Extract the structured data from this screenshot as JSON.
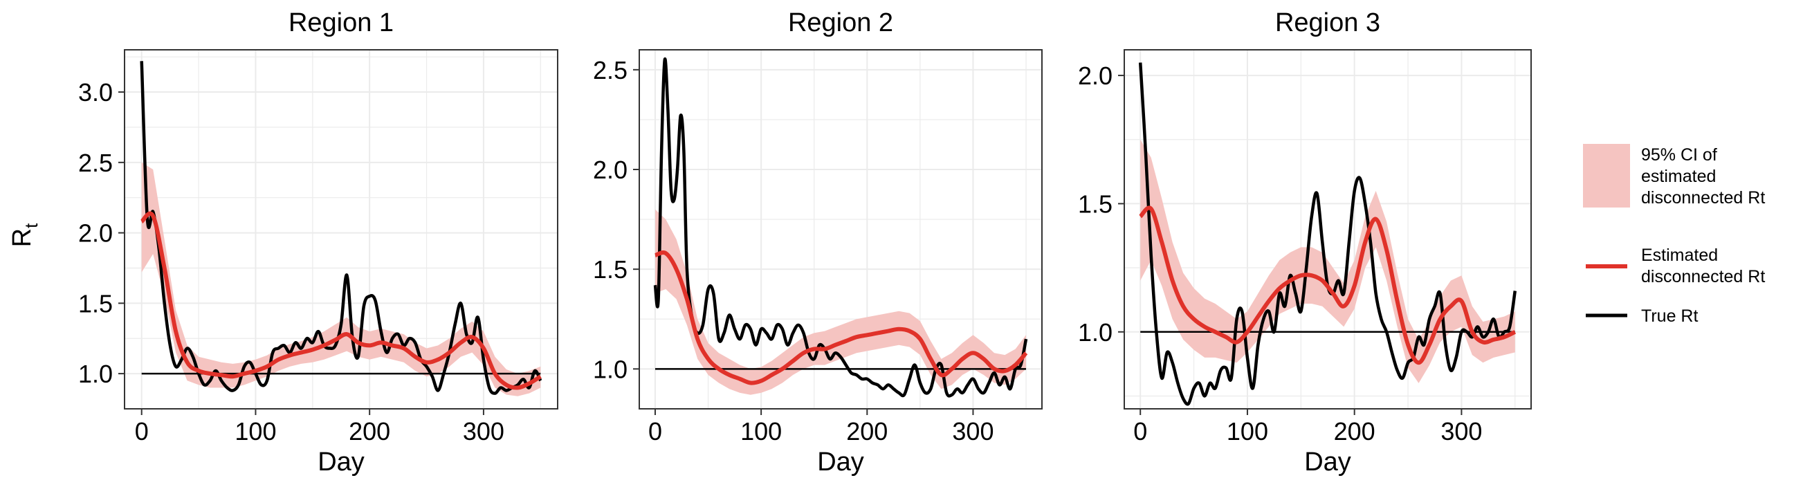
{
  "colors": {
    "ci": "#f5c4c1",
    "estimate": "#e0322a",
    "true": "#000000",
    "grid": "#ebebeb",
    "panel_border": "#333333"
  },
  "legend": {
    "items": [
      {
        "lines": [
          "95% CI of",
          "estimated",
          "disconnected Rt"
        ]
      },
      {
        "lines": [
          "Estimated",
          "disconnected Rt"
        ]
      },
      {
        "lines": [
          "True Rt"
        ]
      }
    ]
  },
  "chart_data": [
    {
      "type": "line",
      "title": "Region 1",
      "xlabel": "Day",
      "ylabel": "R",
      "ylabel_sub": "t",
      "xlim": [
        -15,
        365
      ],
      "ylim": [
        0.75,
        3.3
      ],
      "xticks": [
        0,
        100,
        200,
        300
      ],
      "xtick_labels": [
        "0",
        "100",
        "200",
        "300"
      ],
      "yticks": [
        1.0,
        1.5,
        2.0,
        2.5,
        3.0
      ],
      "ytick_labels": [
        "1.0",
        "1.5",
        "2.0",
        "2.5",
        "3.0"
      ],
      "reference_line": 1.0,
      "grid": true,
      "series": [
        {
          "role": "estimate",
          "x": [
            0,
            10,
            20,
            30,
            40,
            50,
            60,
            70,
            80,
            90,
            100,
            110,
            120,
            130,
            140,
            150,
            160,
            170,
            180,
            190,
            200,
            210,
            220,
            230,
            240,
            250,
            260,
            270,
            280,
            290,
            300,
            310,
            320,
            330,
            340,
            350
          ],
          "y": [
            2.08,
            2.12,
            1.75,
            1.3,
            1.08,
            1.02,
            1.0,
            0.99,
            0.98,
            1.0,
            1.02,
            1.05,
            1.1,
            1.13,
            1.15,
            1.17,
            1.2,
            1.24,
            1.28,
            1.22,
            1.2,
            1.22,
            1.2,
            1.18,
            1.12,
            1.08,
            1.1,
            1.15,
            1.22,
            1.26,
            1.18,
            1.0,
            0.92,
            0.9,
            0.93,
            0.98
          ],
          "lower": [
            1.72,
            1.85,
            1.55,
            1.15,
            0.95,
            0.92,
            0.9,
            0.9,
            0.9,
            0.92,
            0.95,
            0.98,
            1.02,
            1.05,
            1.07,
            1.08,
            1.1,
            1.13,
            1.16,
            1.12,
            1.1,
            1.12,
            1.1,
            1.08,
            1.02,
            0.98,
            1.0,
            1.05,
            1.12,
            1.15,
            1.06,
            0.9,
            0.85,
            0.84,
            0.86,
            0.9
          ],
          "upper": [
            2.5,
            2.45,
            1.95,
            1.45,
            1.2,
            1.12,
            1.1,
            1.08,
            1.07,
            1.08,
            1.1,
            1.13,
            1.18,
            1.21,
            1.23,
            1.26,
            1.3,
            1.35,
            1.4,
            1.33,
            1.3,
            1.32,
            1.3,
            1.28,
            1.22,
            1.18,
            1.2,
            1.25,
            1.32,
            1.37,
            1.3,
            1.12,
            1.03,
            1.0,
            1.02,
            1.05
          ]
        },
        {
          "role": "true",
          "x": [
            0,
            5,
            10,
            15,
            20,
            25,
            30,
            35,
            40,
            45,
            50,
            55,
            60,
            65,
            70,
            75,
            80,
            85,
            90,
            95,
            100,
            105,
            110,
            115,
            120,
            125,
            130,
            135,
            140,
            145,
            150,
            155,
            160,
            165,
            170,
            175,
            180,
            185,
            190,
            195,
            200,
            205,
            210,
            215,
            220,
            225,
            230,
            235,
            240,
            245,
            250,
            255,
            260,
            265,
            270,
            275,
            280,
            285,
            290,
            295,
            300,
            305,
            310,
            315,
            320,
            325,
            330,
            335,
            340,
            345,
            350
          ],
          "y": [
            3.22,
            2.1,
            2.15,
            1.9,
            1.5,
            1.2,
            1.05,
            1.1,
            1.18,
            1.12,
            1.0,
            0.92,
            0.95,
            1.02,
            0.95,
            0.9,
            0.88,
            0.92,
            1.05,
            1.08,
            1.0,
            0.92,
            0.95,
            1.15,
            1.18,
            1.2,
            1.15,
            1.22,
            1.18,
            1.25,
            1.22,
            1.3,
            1.2,
            1.18,
            1.2,
            1.35,
            1.7,
            1.25,
            1.12,
            1.48,
            1.55,
            1.52,
            1.3,
            1.15,
            1.25,
            1.28,
            1.2,
            1.25,
            1.22,
            1.1,
            1.05,
            0.98,
            0.88,
            1.0,
            1.15,
            1.35,
            1.5,
            1.28,
            1.22,
            1.4,
            1.1,
            0.9,
            0.86,
            0.9,
            0.88,
            0.9,
            0.92,
            0.96,
            0.9,
            1.02,
            0.95
          ]
        }
      ]
    },
    {
      "type": "line",
      "title": "Region 2",
      "xlabel": "Day",
      "ylabel": "",
      "xlim": [
        -15,
        365
      ],
      "ylim": [
        0.8,
        2.6
      ],
      "xticks": [
        0,
        100,
        200,
        300
      ],
      "xtick_labels": [
        "0",
        "100",
        "200",
        "300"
      ],
      "yticks": [
        1.0,
        1.5,
        2.0,
        2.5
      ],
      "ytick_labels": [
        "1.0",
        "1.5",
        "2.0",
        "2.5"
      ],
      "reference_line": 1.0,
      "grid": true,
      "series": [
        {
          "role": "estimate",
          "x": [
            0,
            10,
            20,
            30,
            40,
            50,
            60,
            70,
            80,
            90,
            100,
            110,
            120,
            130,
            140,
            150,
            160,
            170,
            180,
            190,
            200,
            210,
            220,
            230,
            240,
            250,
            260,
            270,
            280,
            290,
            300,
            310,
            320,
            330,
            340,
            350
          ],
          "y": [
            1.57,
            1.58,
            1.5,
            1.35,
            1.15,
            1.05,
            1.0,
            0.97,
            0.95,
            0.93,
            0.94,
            0.97,
            1.0,
            1.04,
            1.08,
            1.1,
            1.1,
            1.12,
            1.14,
            1.16,
            1.17,
            1.18,
            1.19,
            1.2,
            1.19,
            1.15,
            1.05,
            0.97,
            1.0,
            1.05,
            1.08,
            1.05,
            1.0,
            0.99,
            1.02,
            1.08
          ],
          "lower": [
            1.38,
            1.4,
            1.35,
            1.22,
            1.05,
            0.97,
            0.93,
            0.9,
            0.88,
            0.87,
            0.88,
            0.9,
            0.93,
            0.97,
            1.0,
            1.02,
            1.02,
            1.04,
            1.06,
            1.08,
            1.09,
            1.1,
            1.11,
            1.12,
            1.11,
            1.07,
            0.97,
            0.9,
            0.92,
            0.97,
            1.0,
            0.97,
            0.93,
            0.92,
            0.95,
            1.0
          ],
          "upper": [
            1.8,
            1.75,
            1.65,
            1.48,
            1.25,
            1.13,
            1.08,
            1.05,
            1.02,
            1.0,
            1.01,
            1.04,
            1.08,
            1.12,
            1.16,
            1.18,
            1.19,
            1.21,
            1.23,
            1.25,
            1.26,
            1.27,
            1.28,
            1.29,
            1.28,
            1.24,
            1.14,
            1.05,
            1.08,
            1.13,
            1.17,
            1.13,
            1.08,
            1.07,
            1.1,
            1.17
          ]
        },
        {
          "role": "true",
          "x": [
            0,
            3,
            6,
            9,
            12,
            15,
            18,
            21,
            24,
            27,
            30,
            35,
            40,
            45,
            50,
            55,
            60,
            65,
            70,
            75,
            80,
            85,
            90,
            95,
            100,
            105,
            110,
            115,
            120,
            125,
            130,
            135,
            140,
            145,
            150,
            155,
            160,
            165,
            170,
            175,
            180,
            185,
            190,
            195,
            200,
            205,
            210,
            215,
            220,
            225,
            230,
            235,
            240,
            245,
            250,
            255,
            260,
            265,
            270,
            275,
            280,
            285,
            290,
            295,
            300,
            305,
            310,
            315,
            320,
            325,
            330,
            335,
            340,
            345,
            350
          ],
          "y": [
            1.42,
            1.35,
            2.1,
            2.55,
            2.3,
            1.9,
            1.85,
            2.0,
            2.27,
            2.1,
            1.5,
            1.25,
            1.18,
            1.22,
            1.4,
            1.38,
            1.15,
            1.18,
            1.27,
            1.2,
            1.15,
            1.22,
            1.2,
            1.12,
            1.2,
            1.18,
            1.15,
            1.22,
            1.2,
            1.12,
            1.18,
            1.22,
            1.18,
            1.08,
            1.05,
            1.12,
            1.1,
            1.05,
            1.08,
            1.06,
            1.02,
            0.98,
            0.97,
            0.95,
            0.95,
            0.93,
            0.92,
            0.9,
            0.92,
            0.9,
            0.88,
            0.87,
            0.95,
            1.02,
            0.93,
            0.88,
            0.9,
            1.0,
            1.02,
            0.88,
            0.87,
            0.9,
            0.88,
            0.92,
            0.95,
            0.9,
            0.88,
            0.93,
            0.98,
            0.92,
            0.96,
            0.9,
            1.0,
            1.02,
            1.15
          ]
        }
      ]
    },
    {
      "type": "line",
      "title": "Region 3",
      "xlabel": "Day",
      "ylabel": "",
      "xlim": [
        -15,
        365
      ],
      "ylim": [
        0.7,
        2.1
      ],
      "xticks": [
        0,
        100,
        200,
        300
      ],
      "xtick_labels": [
        "0",
        "100",
        "200",
        "300"
      ],
      "yticks": [
        1.0,
        1.5,
        2.0
      ],
      "ytick_labels": [
        "1.0",
        "1.5",
        "2.0"
      ],
      "reference_line": 1.0,
      "grid": true,
      "series": [
        {
          "role": "estimate",
          "x": [
            0,
            10,
            20,
            30,
            40,
            50,
            60,
            70,
            80,
            90,
            100,
            110,
            120,
            130,
            140,
            150,
            160,
            170,
            180,
            190,
            200,
            210,
            220,
            230,
            240,
            250,
            260,
            270,
            280,
            290,
            300,
            310,
            320,
            330,
            340,
            350
          ],
          "y": [
            1.45,
            1.48,
            1.35,
            1.2,
            1.1,
            1.05,
            1.02,
            1.0,
            0.98,
            0.96,
            1.0,
            1.06,
            1.12,
            1.17,
            1.2,
            1.22,
            1.22,
            1.2,
            1.15,
            1.1,
            1.18,
            1.35,
            1.44,
            1.32,
            1.12,
            0.95,
            0.88,
            0.95,
            1.05,
            1.1,
            1.12,
            1.0,
            0.96,
            0.97,
            0.98,
            1.0
          ],
          "lower": [
            1.2,
            1.28,
            1.18,
            1.05,
            0.97,
            0.93,
            0.9,
            0.9,
            0.89,
            0.88,
            0.92,
            0.97,
            1.02,
            1.07,
            1.09,
            1.11,
            1.11,
            1.1,
            1.06,
            1.02,
            1.09,
            1.25,
            1.33,
            1.2,
            1.02,
            0.86,
            0.8,
            0.87,
            0.96,
            1.0,
            1.02,
            0.91,
            0.88,
            0.9,
            0.91,
            0.92
          ],
          "upper": [
            1.75,
            1.68,
            1.52,
            1.35,
            1.23,
            1.17,
            1.13,
            1.11,
            1.08,
            1.05,
            1.08,
            1.15,
            1.22,
            1.28,
            1.31,
            1.33,
            1.33,
            1.31,
            1.25,
            1.19,
            1.28,
            1.45,
            1.55,
            1.43,
            1.23,
            1.05,
            0.97,
            1.04,
            1.14,
            1.2,
            1.22,
            1.1,
            1.04,
            1.05,
            1.06,
            1.08
          ]
        },
        {
          "role": "true",
          "x": [
            0,
            5,
            10,
            15,
            20,
            25,
            30,
            35,
            40,
            45,
            50,
            55,
            60,
            65,
            70,
            75,
            80,
            85,
            90,
            95,
            100,
            105,
            110,
            115,
            120,
            125,
            130,
            135,
            140,
            145,
            150,
            155,
            160,
            165,
            170,
            175,
            180,
            185,
            190,
            195,
            200,
            205,
            210,
            215,
            220,
            225,
            230,
            235,
            240,
            245,
            250,
            255,
            260,
            265,
            270,
            275,
            280,
            285,
            290,
            295,
            300,
            305,
            310,
            315,
            320,
            325,
            330,
            335,
            340,
            345,
            350
          ],
          "y": [
            2.05,
            1.7,
            1.3,
            1.0,
            0.82,
            0.92,
            0.88,
            0.8,
            0.74,
            0.72,
            0.78,
            0.8,
            0.75,
            0.8,
            0.78,
            0.85,
            0.86,
            0.82,
            1.05,
            1.08,
            0.9,
            0.78,
            0.95,
            1.05,
            1.08,
            1.0,
            1.15,
            1.1,
            1.22,
            1.15,
            1.08,
            1.25,
            1.45,
            1.54,
            1.35,
            1.18,
            1.15,
            1.2,
            1.15,
            1.35,
            1.55,
            1.6,
            1.5,
            1.35,
            1.15,
            1.05,
            1.0,
            0.92,
            0.85,
            0.82,
            0.88,
            0.9,
            0.98,
            0.95,
            1.05,
            1.1,
            1.15,
            0.95,
            0.85,
            0.9,
            1.0,
            1.0,
            0.98,
            1.02,
            0.98,
            1.0,
            1.05,
            0.98,
            1.0,
            1.02,
            1.16
          ]
        }
      ]
    }
  ]
}
